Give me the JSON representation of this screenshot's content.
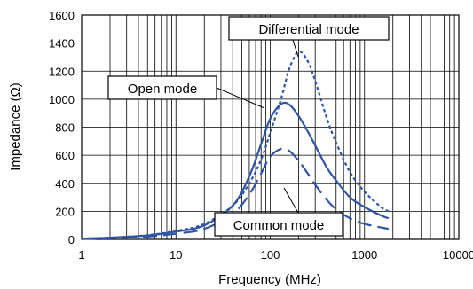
{
  "chart_data": {
    "type": "line",
    "title": "",
    "xlabel": "Frequency (MHz)",
    "ylabel": "Impedance (Ω)",
    "x_scale": "log",
    "xlim": [
      1,
      10000
    ],
    "ylim": [
      0,
      1600
    ],
    "grid": true,
    "x_ticks": [
      1,
      10,
      100,
      1000,
      10000
    ],
    "x_tick_labels": [
      "1",
      "10",
      "100",
      "1000",
      "10000"
    ],
    "y_ticks": [
      0,
      200,
      400,
      600,
      800,
      1000,
      1200,
      1400,
      1600
    ],
    "y_tick_labels": [
      "0",
      "200",
      "400",
      "600",
      "800",
      "1000",
      "1200",
      "1400",
      "1600"
    ],
    "line_color": "#2f55a4",
    "series": [
      {
        "name": "Differential mode",
        "line_style": "dotted",
        "x": [
          1,
          2,
          5,
          10,
          20,
          40,
          60,
          80,
          100,
          130,
          160,
          200,
          250,
          300,
          400,
          500,
          700,
          1000,
          1500,
          1800
        ],
        "y": [
          5,
          12,
          30,
          60,
          110,
          240,
          400,
          570,
          760,
          1000,
          1220,
          1340,
          1270,
          1130,
          860,
          690,
          480,
          340,
          230,
          200
        ]
      },
      {
        "name": "Open mode",
        "line_style": "solid",
        "x": [
          1,
          2,
          5,
          10,
          20,
          40,
          60,
          80,
          100,
          130,
          160,
          200,
          250,
          300,
          400,
          500,
          700,
          1000,
          1500,
          1800
        ],
        "y": [
          5,
          12,
          28,
          55,
          100,
          240,
          450,
          680,
          860,
          965,
          960,
          880,
          770,
          670,
          510,
          420,
          300,
          230,
          170,
          150
        ]
      },
      {
        "name": "Common mode",
        "line_style": "dashed",
        "x": [
          1,
          2,
          5,
          10,
          20,
          40,
          60,
          80,
          100,
          130,
          160,
          200,
          250,
          300,
          400,
          500,
          700,
          1000,
          1500,
          1800
        ],
        "y": [
          3,
          8,
          20,
          40,
          75,
          180,
          320,
          470,
          590,
          645,
          630,
          560,
          470,
          390,
          280,
          215,
          150,
          110,
          85,
          75
        ]
      }
    ],
    "callouts": [
      {
        "label": "Differential mode",
        "series": "Differential mode"
      },
      {
        "label": "Open mode",
        "series": "Open mode"
      },
      {
        "label": "Common mode",
        "series": "Common mode"
      }
    ]
  }
}
